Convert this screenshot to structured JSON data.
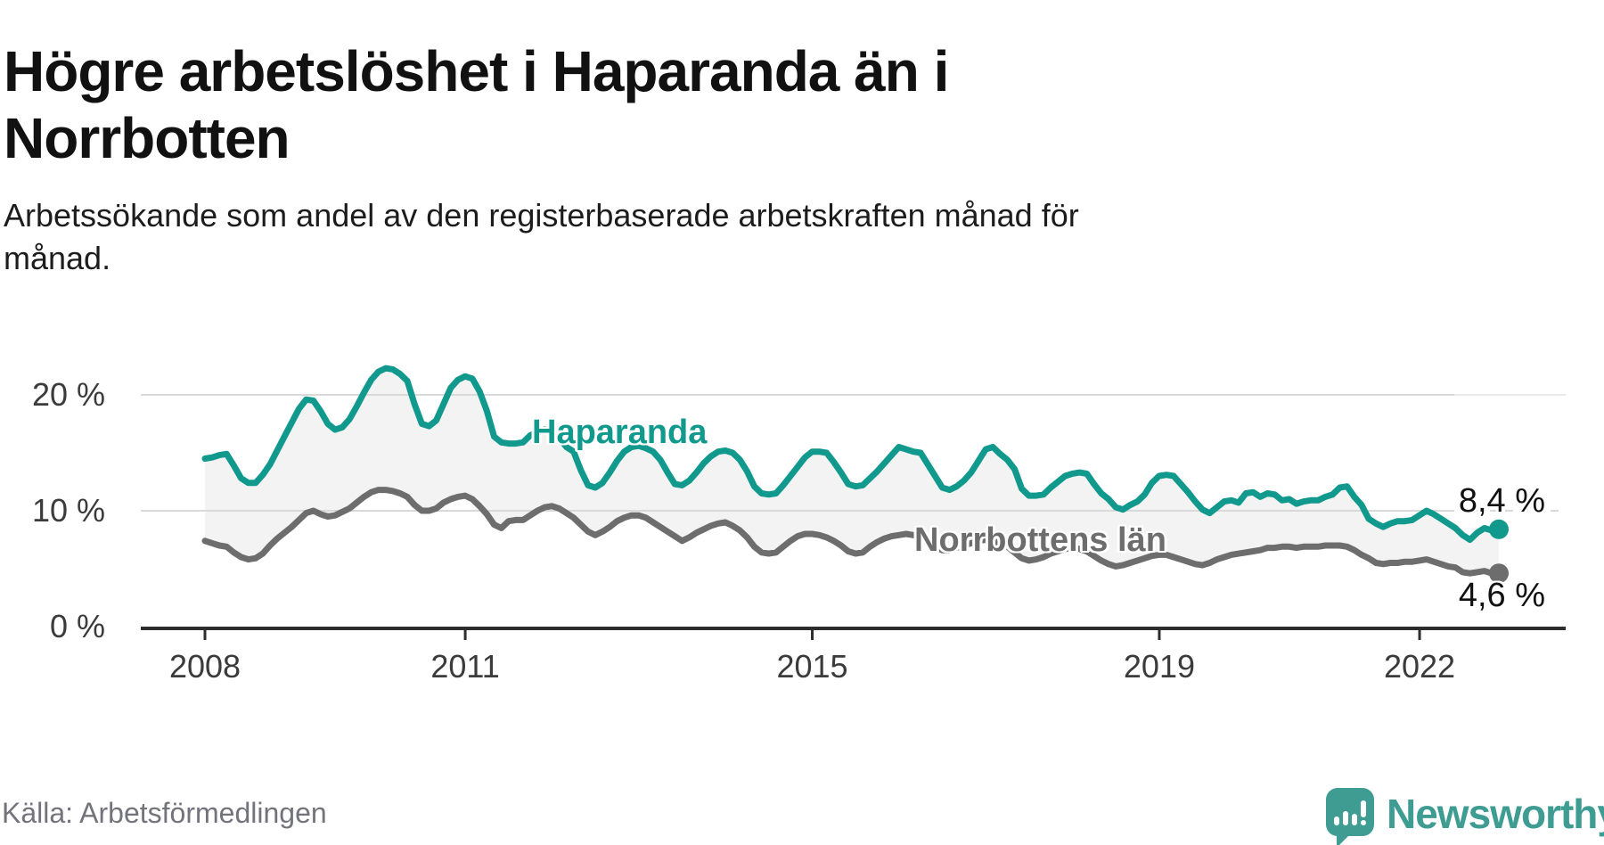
{
  "header": {
    "title": "Högre arbetslöshet i Haparanda än i Norrbotten",
    "subtitle": "Arbetssökande som andel av den registerbaserade arbetskraften månad för månad."
  },
  "footer": {
    "source": "Källa: Arbetsförmedlingen",
    "brand": "Newsworthy"
  },
  "colors": {
    "haparanda_teal": "#10998c",
    "norrbotten_gray": "#6d6d6d",
    "area_fill": "#f3f3f3",
    "gridline": "#d9d9d9",
    "axis": "#2d2d2d",
    "brand_teal": "#3f9c92"
  },
  "chart_data": {
    "type": "line",
    "title": "Högre arbetslöshet i Haparanda än i Norrbotten",
    "subtitle": "Arbetssökande som andel av den registerbaserade arbetskraften månad för månad.",
    "unit": "%",
    "x_interval": "monthly",
    "x_start": "2008-01",
    "x_end": "2022-12",
    "x_ticks": [
      2008,
      2011,
      2015,
      2019,
      2022
    ],
    "y_ticks": [
      {
        "value": 0,
        "label": "0 %"
      },
      {
        "value": 10,
        "label": "10 %"
      },
      {
        "value": 20,
        "label": "20 %"
      }
    ],
    "ylim": [
      0,
      23
    ],
    "grid": "horizontal",
    "legend_position": "inline-labels",
    "series": [
      {
        "name": "Haparanda",
        "color": "#10998c",
        "end_label": "8,4 %",
        "end_value": 8.4,
        "values": [
          14.5,
          14.6,
          14.8,
          14.9,
          13.9,
          12.8,
          12.4,
          12.4,
          13.1,
          14.0,
          15.2,
          16.4,
          17.6,
          18.8,
          19.6,
          19.5,
          18.6,
          17.5,
          17.0,
          17.2,
          17.9,
          19.0,
          20.2,
          21.3,
          22.0,
          22.3,
          22.2,
          21.8,
          21.2,
          19.2,
          17.5,
          17.3,
          17.8,
          19.2,
          20.6,
          21.3,
          21.6,
          21.4,
          20.3,
          18.6,
          16.4,
          15.9,
          15.8,
          15.8,
          15.9,
          16.5,
          16.8,
          17.0,
          16.8,
          16.3,
          15.5,
          15.1,
          13.5,
          12.2,
          12.0,
          12.4,
          13.3,
          14.3,
          15.1,
          15.5,
          15.6,
          15.4,
          15.1,
          14.4,
          13.3,
          12.3,
          12.2,
          12.6,
          13.3,
          14.1,
          14.7,
          15.1,
          15.2,
          15.0,
          14.4,
          13.4,
          12.1,
          11.5,
          11.4,
          11.5,
          12.2,
          13.0,
          13.8,
          14.6,
          15.1,
          15.1,
          15.0,
          14.2,
          13.3,
          12.3,
          12.1,
          12.2,
          12.8,
          13.4,
          14.1,
          14.8,
          15.5,
          15.3,
          15.1,
          15.0,
          14.0,
          13.0,
          12.0,
          11.8,
          12.1,
          12.6,
          13.3,
          14.3,
          15.3,
          15.5,
          14.9,
          14.4,
          13.6,
          11.9,
          11.3,
          11.3,
          11.4,
          12.0,
          12.5,
          13.0,
          13.2,
          13.3,
          13.2,
          12.3,
          11.5,
          11.0,
          10.3,
          10.1,
          10.5,
          10.8,
          11.4,
          12.4,
          13.0,
          13.1,
          13.0,
          12.3,
          11.6,
          10.8,
          10.1,
          9.8,
          10.3,
          10.8,
          10.9,
          10.7,
          11.5,
          11.6,
          11.2,
          11.5,
          11.4,
          10.9,
          11.0,
          10.6,
          10.8,
          10.9,
          10.9,
          11.2,
          11.4,
          12.0,
          12.1,
          11.2,
          10.5,
          9.3,
          8.9,
          8.6,
          8.9,
          9.1,
          9.1,
          9.2,
          9.6,
          10.0,
          9.7,
          9.3,
          8.9,
          8.5,
          7.9,
          7.5,
          8.1,
          8.5,
          8.3,
          8.4
        ]
      },
      {
        "name": "Norrbottens län",
        "color": "#6d6d6d",
        "end_label": "4,6 %",
        "end_value": 4.6,
        "values": [
          7.4,
          7.2,
          7.0,
          6.9,
          6.4,
          6.0,
          5.8,
          5.9,
          6.3,
          7.0,
          7.6,
          8.1,
          8.6,
          9.2,
          9.8,
          10.0,
          9.7,
          9.5,
          9.6,
          9.9,
          10.2,
          10.7,
          11.2,
          11.6,
          11.8,
          11.8,
          11.7,
          11.5,
          11.2,
          10.5,
          10.0,
          10.0,
          10.2,
          10.7,
          11.0,
          11.2,
          11.3,
          11.0,
          10.4,
          9.7,
          8.8,
          8.5,
          9.1,
          9.2,
          9.2,
          9.6,
          10.0,
          10.3,
          10.4,
          10.2,
          9.8,
          9.4,
          8.8,
          8.2,
          7.9,
          8.2,
          8.6,
          9.1,
          9.4,
          9.6,
          9.6,
          9.4,
          9.0,
          8.6,
          8.2,
          7.8,
          7.4,
          7.7,
          8.1,
          8.4,
          8.7,
          8.9,
          9.0,
          8.7,
          8.3,
          7.7,
          6.9,
          6.4,
          6.3,
          6.4,
          6.9,
          7.4,
          7.8,
          8.0,
          8.0,
          7.9,
          7.7,
          7.4,
          7.0,
          6.5,
          6.3,
          6.4,
          6.9,
          7.3,
          7.6,
          7.8,
          7.9,
          8.0,
          7.9,
          7.7,
          7.3,
          6.9,
          6.6,
          6.6,
          6.8,
          7.0,
          7.2,
          7.4,
          7.5,
          7.4,
          7.2,
          6.9,
          6.4,
          5.9,
          5.7,
          5.8,
          6.0,
          6.3,
          6.5,
          6.7,
          6.8,
          6.7,
          6.5,
          6.1,
          5.7,
          5.4,
          5.2,
          5.3,
          5.5,
          5.7,
          5.9,
          6.1,
          6.2,
          6.2,
          6.0,
          5.8,
          5.6,
          5.4,
          5.3,
          5.5,
          5.8,
          6.0,
          6.2,
          6.3,
          6.4,
          6.5,
          6.6,
          6.8,
          6.8,
          6.9,
          6.9,
          6.8,
          6.9,
          6.9,
          6.9,
          7.0,
          7.0,
          7.0,
          6.9,
          6.6,
          6.2,
          5.9,
          5.5,
          5.4,
          5.5,
          5.5,
          5.6,
          5.6,
          5.7,
          5.8,
          5.6,
          5.4,
          5.2,
          5.1,
          4.7,
          4.6,
          4.7,
          4.8,
          4.6,
          4.6
        ]
      }
    ]
  }
}
